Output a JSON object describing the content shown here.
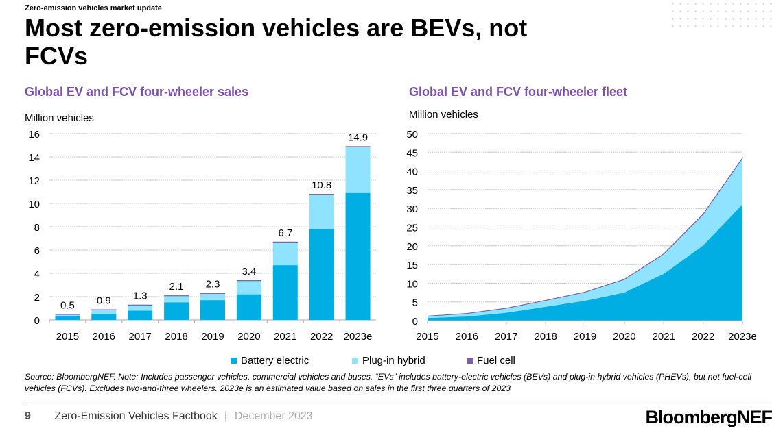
{
  "header": {
    "kicker": "Zero-emission vehicles market update",
    "title": "Most zero-emission vehicles are BEVs, not FCVs"
  },
  "colors": {
    "bev": "#00aee3",
    "phev": "#8fe3ff",
    "fcv": "#7a5cb0",
    "title": "#7c4fa8"
  },
  "chart_data": [
    {
      "type": "bar",
      "stacked": true,
      "title": "Global EV and FCV four-wheeler sales",
      "ylabel": "Million vehicles",
      "ylim": [
        0,
        16
      ],
      "yticks": [
        0,
        2,
        4,
        6,
        8,
        10,
        12,
        14,
        16
      ],
      "grid": true,
      "categories": [
        "2015",
        "2016",
        "2017",
        "2018",
        "2019",
        "2020",
        "2021",
        "2022",
        "2023e"
      ],
      "series": [
        {
          "name": "Battery electric",
          "values": [
            0.3,
            0.5,
            0.8,
            1.5,
            1.7,
            2.2,
            4.7,
            7.8,
            10.9
          ]
        },
        {
          "name": "Plug-in hybrid",
          "values": [
            0.2,
            0.4,
            0.5,
            0.6,
            0.6,
            1.2,
            2.0,
            3.0,
            4.0
          ]
        },
        {
          "name": "Fuel cell",
          "values": [
            0.01,
            0.01,
            0.01,
            0.01,
            0.01,
            0.01,
            0.02,
            0.02,
            0.02
          ]
        }
      ],
      "data_labels": [
        "0.5",
        "0.9",
        "1.3",
        "2.1",
        "2.3",
        "3.4",
        "6.7",
        "10.8",
        "14.9"
      ]
    },
    {
      "type": "area",
      "stacked": true,
      "title": "Global EV and FCV four-wheeler fleet",
      "ylabel": "Million vehicles",
      "ylim": [
        0,
        50
      ],
      "yticks": [
        0,
        5,
        10,
        15,
        20,
        25,
        30,
        35,
        40,
        45,
        50
      ],
      "grid": true,
      "categories": [
        "2015",
        "2016",
        "2017",
        "2018",
        "2019",
        "2020",
        "2021",
        "2022",
        "2023e"
      ],
      "series": [
        {
          "name": "Battery electric",
          "values": [
            0.7,
            1.1,
            2.1,
            3.7,
            5.3,
            7.5,
            12.5,
            20.1,
            31.1
          ]
        },
        {
          "name": "Plug-in hybrid",
          "values": [
            0.5,
            0.8,
            1.2,
            1.7,
            2.3,
            3.5,
            5.3,
            8.3,
            12.3
          ]
        },
        {
          "name": "Fuel cell",
          "values": [
            0.01,
            0.02,
            0.02,
            0.03,
            0.03,
            0.04,
            0.05,
            0.07,
            0.08
          ]
        }
      ]
    }
  ],
  "legend": [
    "Battery electric",
    "Plug-in hybrid",
    "Fuel cell"
  ],
  "source": "Source: BloombergNEF. Note: Includes passenger vehicles, commercial vehicles and buses. “EVs” includes battery-electric vehicles (BEVs) and plug-in hybrid vehicles (PHEVs), but not fuel-cell vehicles (FCVs). Excludes two-and-three wheelers. 2023e is an estimated value based on sales in the first three quarters of 2023",
  "footer": {
    "page": "9",
    "doc": "Zero-Emission Vehicles Factbook",
    "sep": "|",
    "date": "December 2023",
    "logo": "BloombergNEF"
  }
}
